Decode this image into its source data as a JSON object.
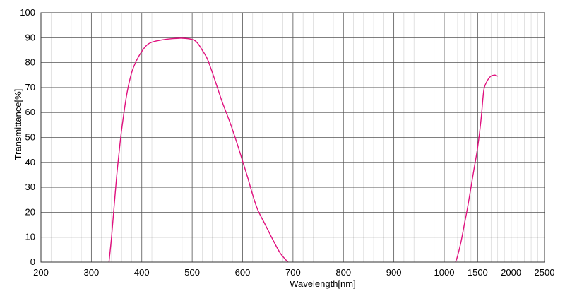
{
  "chart_data": {
    "type": "line",
    "xlabel": "Wavelength[nm]",
    "ylabel": "Transmittance[%]",
    "ylim": [
      0,
      100
    ],
    "x_axis_note": "broken scale: linear 200–1000 nm, then compressed 1000–2500 nm",
    "x_ticks": [
      200,
      300,
      400,
      500,
      600,
      700,
      800,
      900,
      1000,
      1500,
      2000,
      2500
    ],
    "x_tick_labels": [
      "200",
      "300",
      "400",
      "500",
      "600",
      "700",
      "800",
      "900",
      "1000",
      "1500",
      "2000",
      "2500"
    ],
    "y_ticks": [
      0,
      10,
      20,
      30,
      40,
      50,
      60,
      70,
      80,
      90,
      100
    ],
    "y_tick_labels": [
      "0",
      "10",
      "20",
      "30",
      "40",
      "50",
      "60",
      "70",
      "80",
      "90",
      "100"
    ],
    "grid": true,
    "line_color": "#E0107E",
    "series": [
      {
        "points": [
          [
            335,
            0
          ],
          [
            340,
            10
          ],
          [
            345,
            22
          ],
          [
            350,
            34
          ],
          [
            355,
            44
          ],
          [
            360,
            53
          ],
          [
            370,
            67
          ],
          [
            380,
            76
          ],
          [
            390,
            81
          ],
          [
            400,
            84.5
          ],
          [
            410,
            87
          ],
          [
            420,
            88.2
          ],
          [
            440,
            89.1
          ],
          [
            460,
            89.6
          ],
          [
            480,
            89.8
          ],
          [
            500,
            89.3
          ],
          [
            510,
            88
          ],
          [
            520,
            85
          ],
          [
            530,
            81.5
          ],
          [
            540,
            76
          ],
          [
            550,
            70
          ],
          [
            560,
            64
          ],
          [
            575,
            56
          ],
          [
            590,
            47
          ],
          [
            600,
            40.5
          ],
          [
            610,
            34
          ],
          [
            620,
            27
          ],
          [
            630,
            21
          ],
          [
            645,
            15
          ],
          [
            660,
            9
          ],
          [
            675,
            3.5
          ],
          [
            690,
            0
          ]
        ]
      },
      {
        "points": [
          [
            1170,
            0
          ],
          [
            1200,
            2.5
          ],
          [
            1250,
            8
          ],
          [
            1300,
            15
          ],
          [
            1350,
            22
          ],
          [
            1400,
            30
          ],
          [
            1450,
            38
          ],
          [
            1500,
            46
          ],
          [
            1550,
            57
          ],
          [
            1580,
            66
          ],
          [
            1600,
            70
          ],
          [
            1650,
            73
          ],
          [
            1700,
            74.6
          ],
          [
            1750,
            75
          ],
          [
            1780,
            74.8
          ],
          [
            1800,
            74.5
          ]
        ]
      }
    ]
  }
}
